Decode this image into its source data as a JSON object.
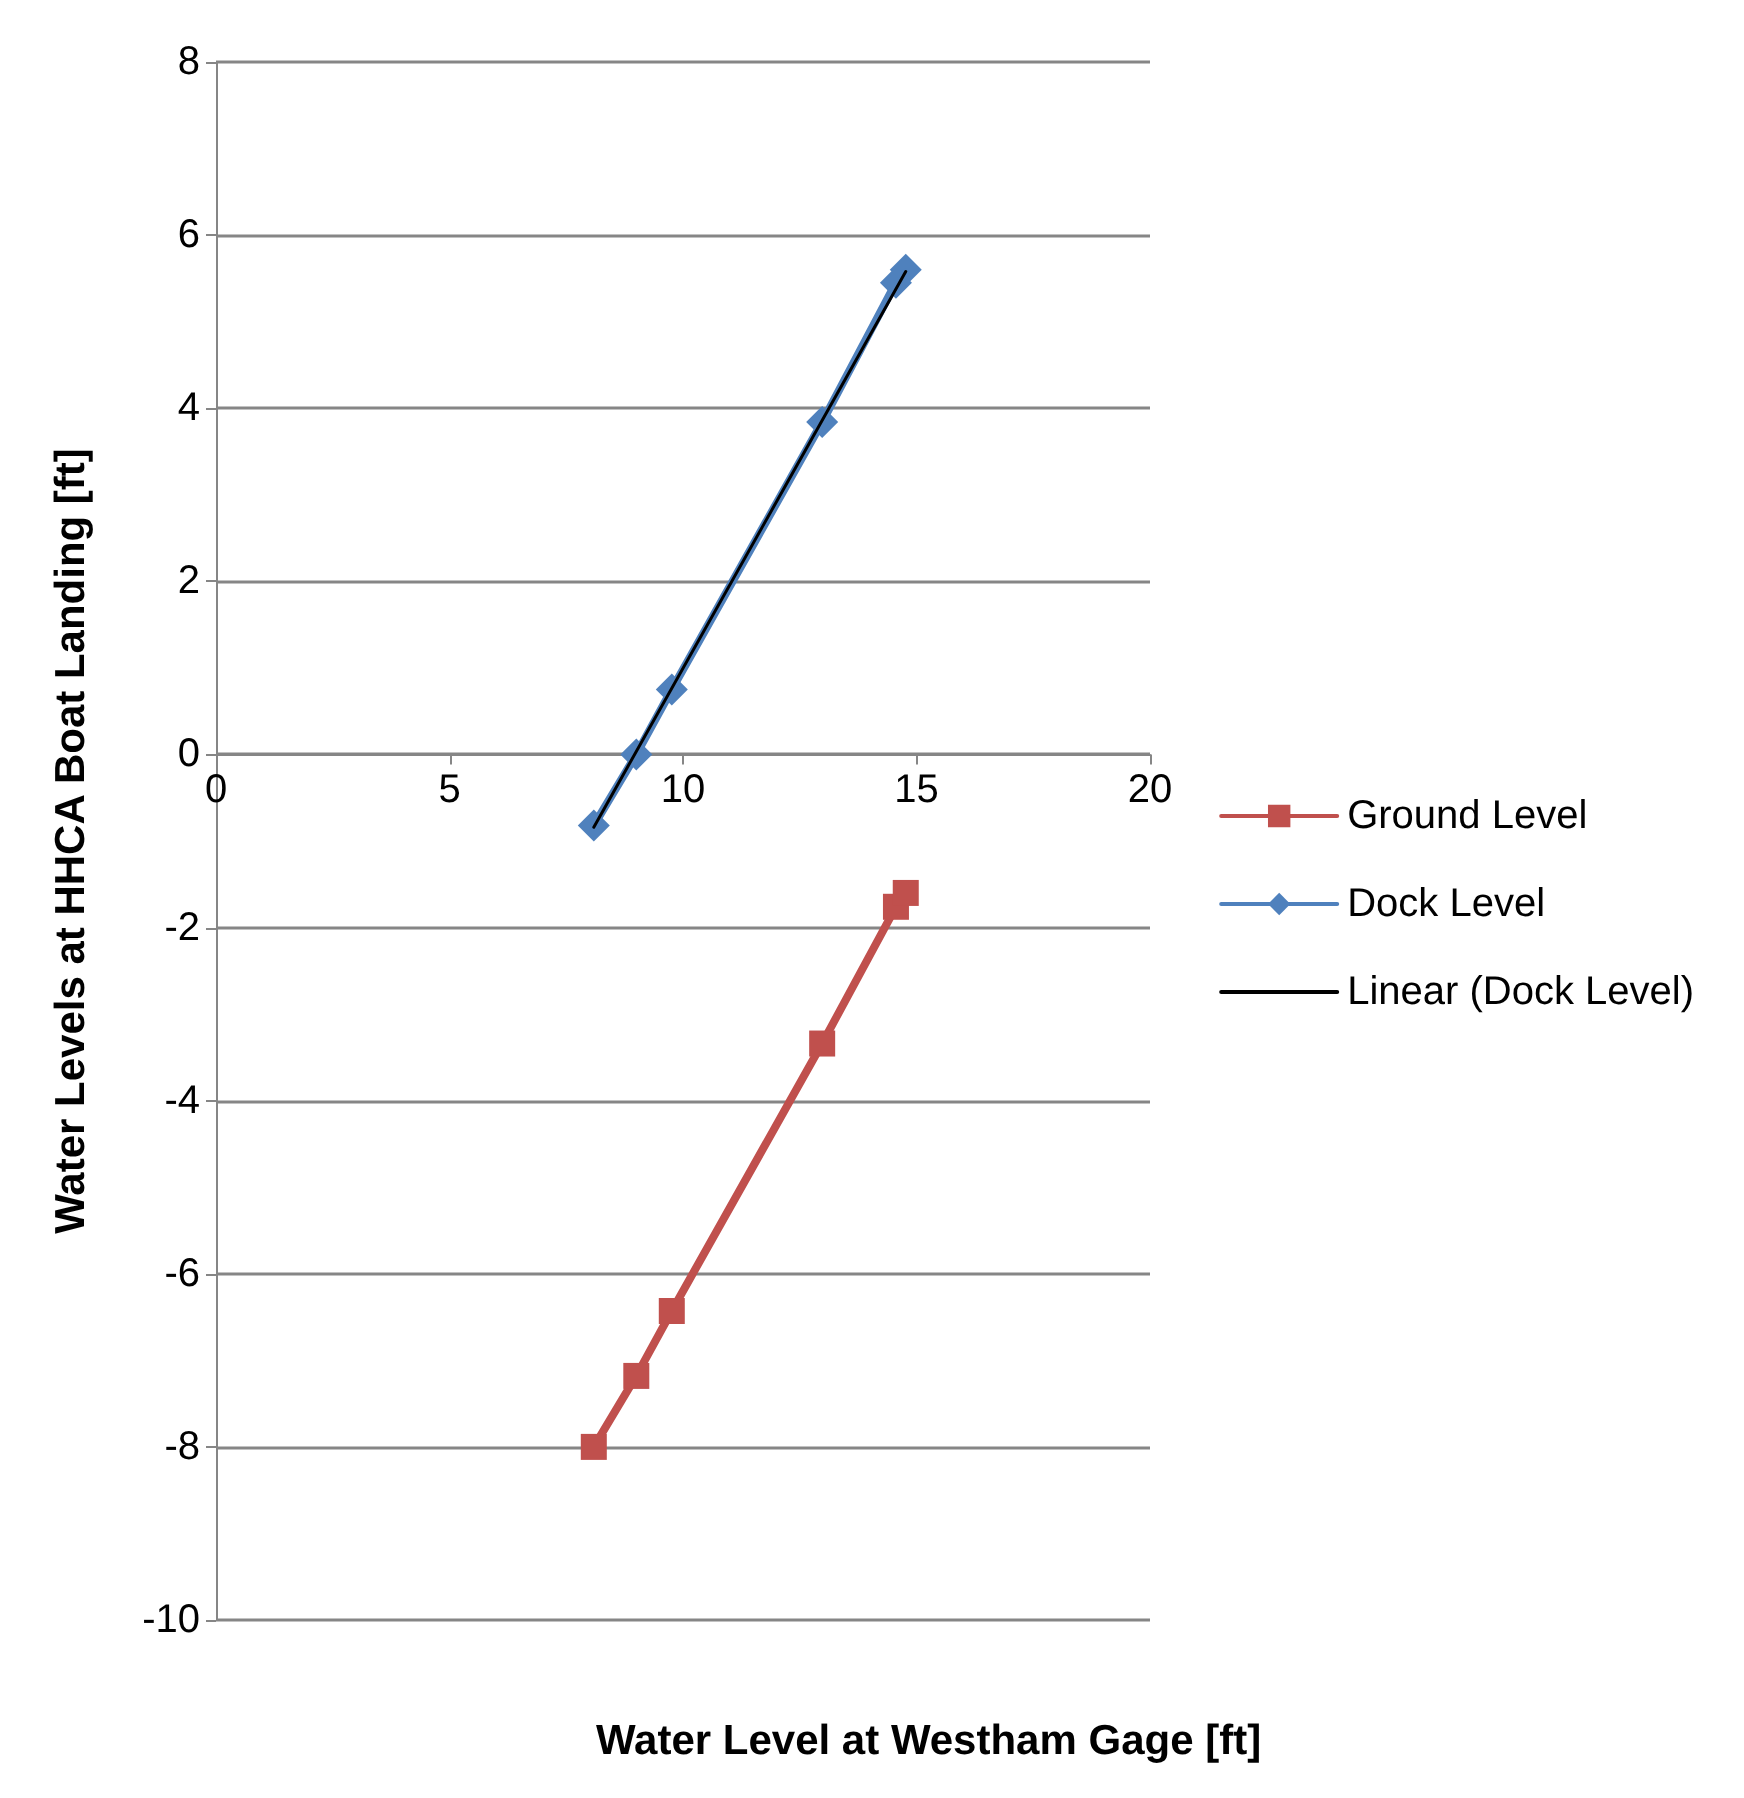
{
  "chart_data": {
    "type": "line",
    "xlabel": "Water Level at Westham Gage [ft]",
    "ylabel": "Water Levels at HHCA Boat Landing [ft]",
    "x": [
      8.09,
      9.0,
      9.76,
      12.98,
      14.56,
      14.77
    ],
    "series": [
      {
        "name": "Ground Level",
        "color": "#c0504d",
        "marker": "square",
        "values": [
          -8.0,
          -7.18,
          -6.43,
          -3.34,
          -1.76,
          -1.6
        ]
      },
      {
        "name": "Dock Level",
        "color": "#4f81bd",
        "marker": "diamond",
        "values": [
          -0.82,
          0.0,
          0.75,
          3.84,
          5.45,
          5.6
        ]
      },
      {
        "name": "Linear (Dock Level)",
        "color": "#000000",
        "marker": "none",
        "x": [
          8.09,
          14.77
        ],
        "values": [
          -0.84,
          5.58
        ]
      }
    ],
    "xlim": [
      0,
      20
    ],
    "xticks": [
      0,
      5,
      10,
      15,
      20
    ],
    "ylim": [
      -10,
      8
    ],
    "yticks": [
      -10,
      -8,
      -6,
      -4,
      -2,
      0,
      2,
      4,
      6,
      8
    ],
    "grid": "y",
    "legend": "right",
    "line_style": "solid"
  }
}
